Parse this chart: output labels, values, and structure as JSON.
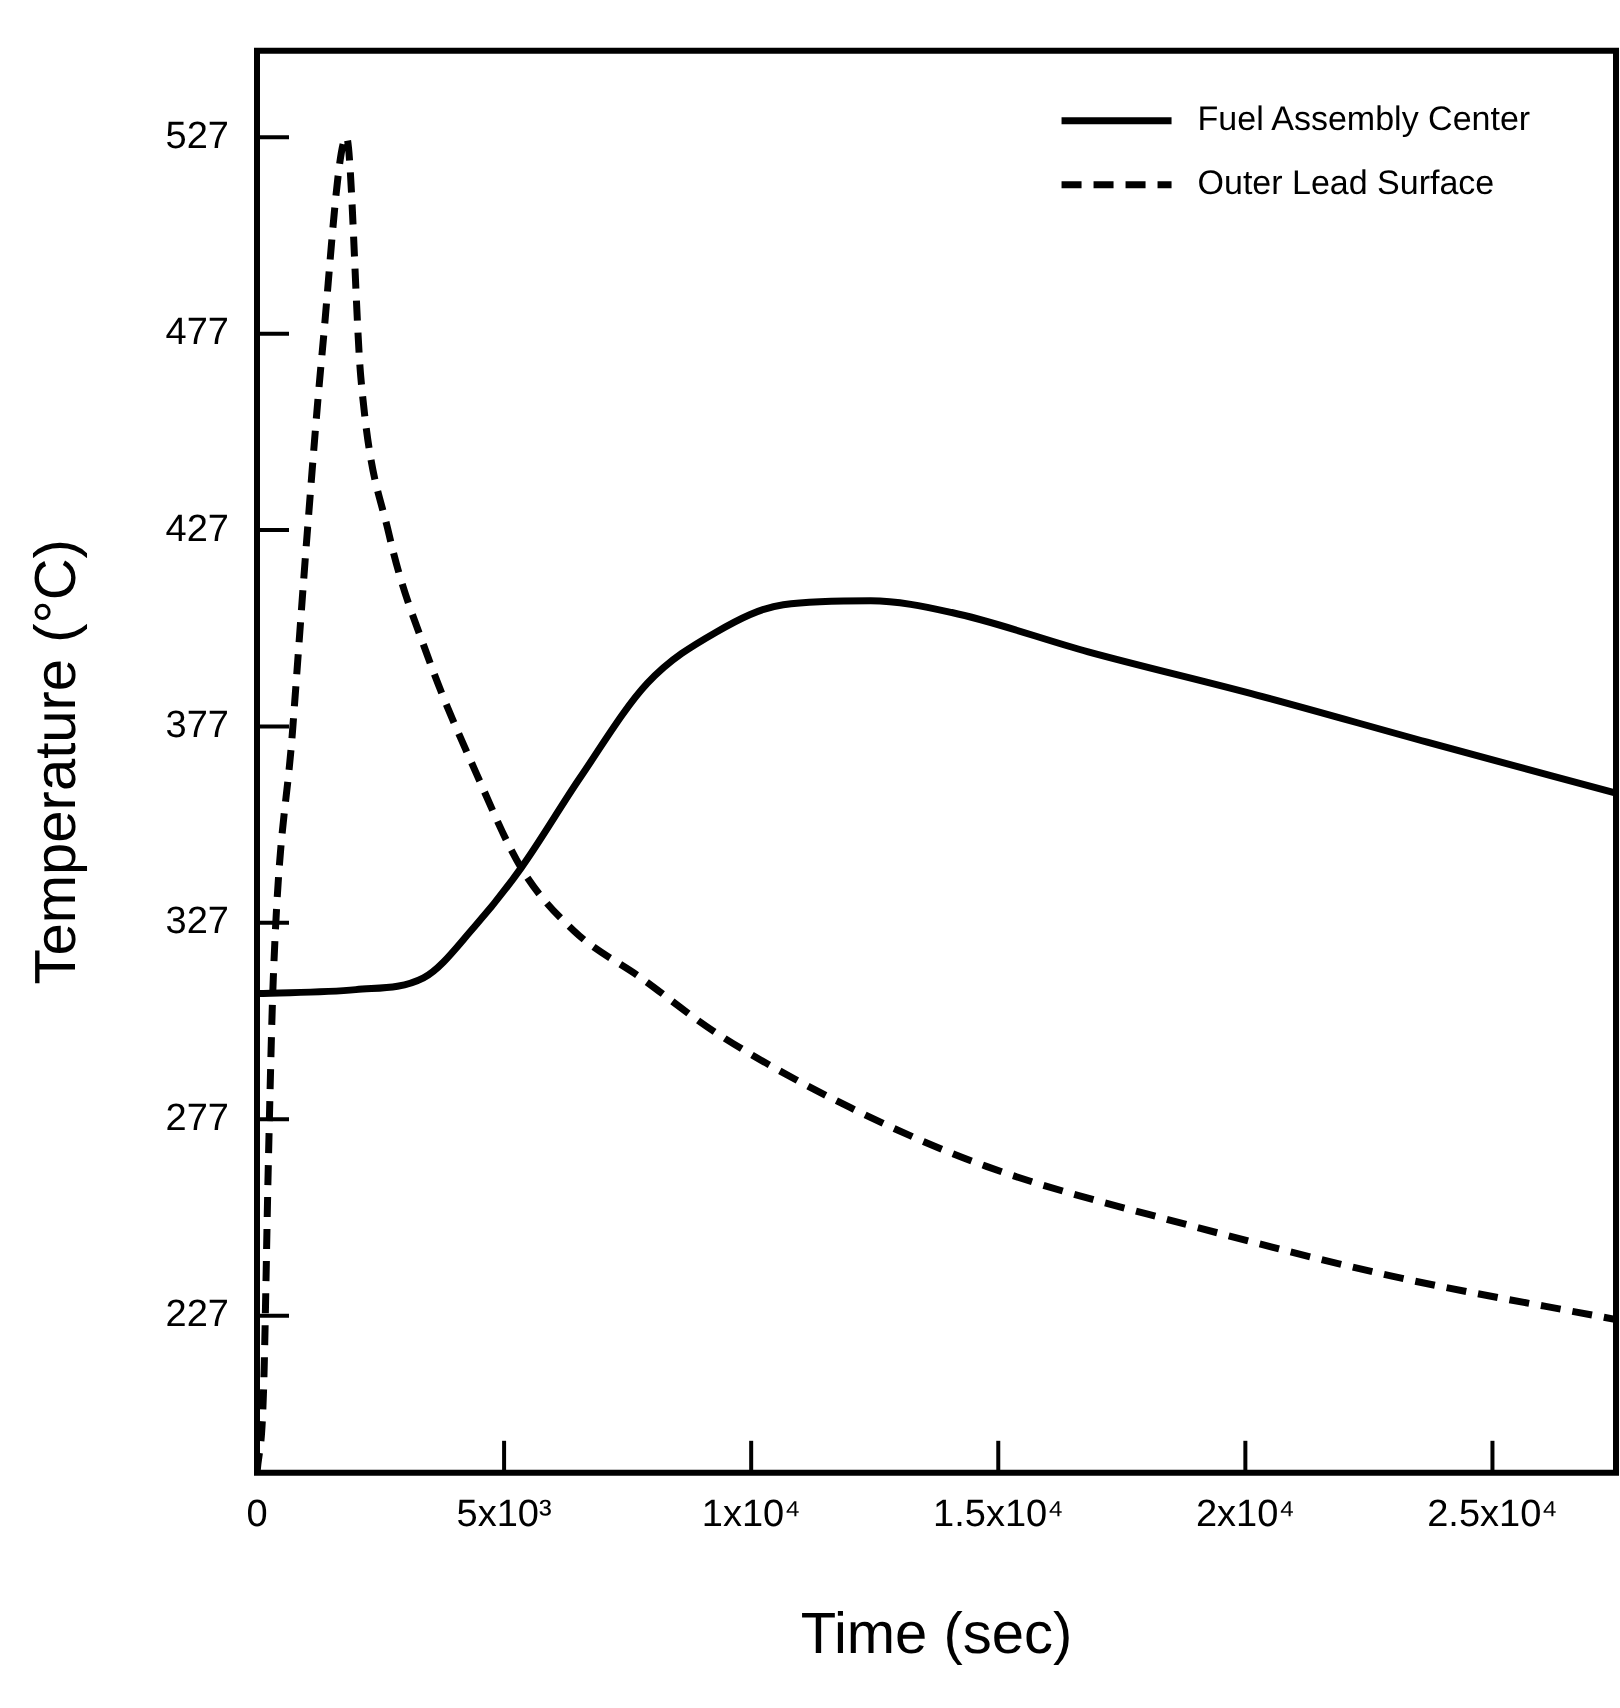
{
  "chart_data": {
    "type": "line",
    "xlabel": "Time (sec)",
    "ylabel": "Temperature (°C)",
    "xlim": [
      0,
      27500
    ],
    "ylim": [
      187,
      549
    ],
    "xticks": [
      0,
      {
        "value": 5000,
        "label": "5x10³"
      },
      {
        "value": 10000,
        "label": "1x10⁴"
      },
      {
        "value": 15000,
        "label": "1.5x10⁴"
      },
      {
        "value": 20000,
        "label": "2x10⁴"
      },
      {
        "value": 25000,
        "label": "2.5x10⁴"
      }
    ],
    "yticks": [
      227,
      277,
      327,
      377,
      427,
      477,
      527
    ],
    "grid": false,
    "legend": "top right",
    "marker": "none",
    "series": [
      {
        "name": "Fuel Assembly Center",
        "color": "#000000",
        "line_style": "solid",
        "x": [
          0,
          2000,
          3370,
          4400,
          5345,
          6540,
          7900,
          9290,
          10650,
          12420,
          14060,
          16820,
          20230,
          23680,
          27500
        ],
        "values": [
          309,
          310,
          313,
          326,
          341,
          364,
          388,
          401,
          408,
          409,
          406,
          396,
          385,
          373,
          360
        ]
      },
      {
        "name": "Outer Lead Surface",
        "color": "#000000",
        "line_style": "dashed",
        "x": [
          0,
          130,
          230,
          330,
          720,
          1015,
          1310,
          1810,
          2100,
          2670,
          3450,
          4440,
          5345,
          6410,
          7770,
          9290,
          12000,
          14760,
          18870,
          22990,
          27500
        ],
        "values": [
          187,
          207,
          266,
          313,
          376,
          426,
          471,
          527,
          466,
          426,
          395,
          365,
          341,
          325,
          313,
          299,
          280,
          265,
          250,
          237,
          226
        ]
      }
    ]
  }
}
